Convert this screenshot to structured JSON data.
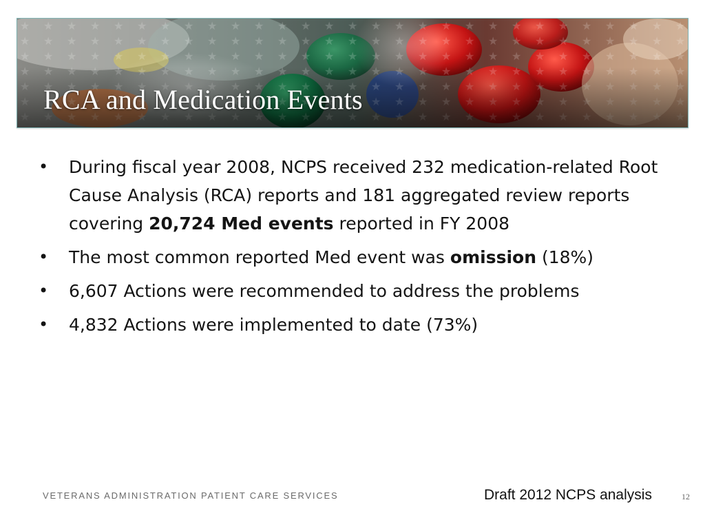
{
  "slide": {
    "title": "RCA and Medication Events",
    "bullets": [
      {
        "before": "During fiscal year 2008, NCPS received 232 medication-related Root Cause Analysis (RCA) reports and 181 aggregated review reports covering ",
        "bold": "20,724 Med events",
        "after": " reported in FY 2008"
      },
      {
        "before": "The most common reported Med event was ",
        "bold": "omission",
        "after": " (18%)"
      },
      {
        "text": "6,607 Actions were recommended to address the problems"
      },
      {
        "text": "4,832 Actions were implemented to date (73%)"
      }
    ],
    "footer": {
      "organization": "VETERANS ADMINISTRATION PATIENT CARE SERVICES",
      "note": "Draft 2012 NCPS analysis",
      "page_number": "12"
    }
  }
}
